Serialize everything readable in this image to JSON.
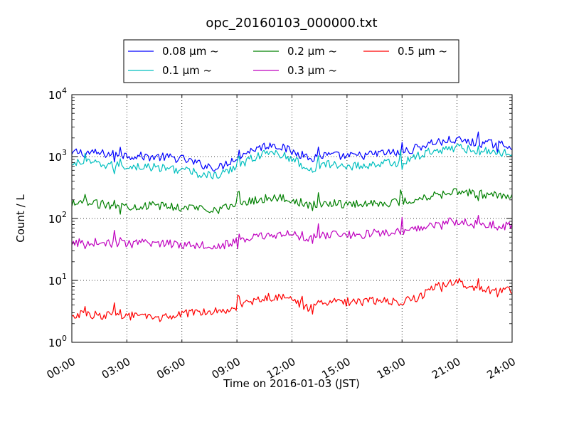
{
  "chart_data": {
    "type": "line",
    "title": "opc_20160103_000000.txt",
    "xlabel": "Time on 2016-01-03 (JST)",
    "ylabel": "Count / L",
    "y_scale": "log",
    "ylim": [
      1,
      10000
    ],
    "xlim": [
      "00:00",
      "24:00"
    ],
    "grid": true,
    "legend_position": "top-center",
    "x_ticks": [
      "00:00",
      "03:00",
      "06:00",
      "09:00",
      "12:00",
      "15:00",
      "18:00",
      "21:00",
      "24:00"
    ],
    "y_ticks": [
      {
        "value": 1,
        "base": "10",
        "exp": "0"
      },
      {
        "value": 10,
        "base": "10",
        "exp": "1"
      },
      {
        "value": 100,
        "base": "10",
        "exp": "2"
      },
      {
        "value": 1000,
        "base": "10",
        "exp": "3"
      },
      {
        "value": 10000,
        "base": "10",
        "exp": "4"
      }
    ],
    "x_hours": [
      0,
      1,
      2,
      3,
      4,
      5,
      6,
      7,
      8,
      9,
      10,
      11,
      12,
      13,
      14,
      15,
      16,
      17,
      18,
      19,
      20,
      21,
      22,
      23,
      24
    ],
    "series": [
      {
        "name": "0.08 μm ~",
        "color": "#0000ff",
        "values": [
          1200,
          1150,
          1100,
          1050,
          1000,
          980,
          920,
          750,
          650,
          1000,
          1350,
          1600,
          1200,
          950,
          1050,
          1000,
          1050,
          1150,
          1150,
          1450,
          1800,
          1850,
          1650,
          1600,
          1500
        ]
      },
      {
        "name": "0.1 μm ~",
        "color": "#00bfbf",
        "values": [
          800,
          780,
          720,
          700,
          680,
          650,
          620,
          520,
          480,
          700,
          1000,
          1200,
          900,
          650,
          750,
          700,
          720,
          780,
          800,
          1050,
          1350,
          1400,
          1250,
          1200,
          1150
        ]
      },
      {
        "name": "0.2 μm ~",
        "color": "#008000",
        "values": [
          170,
          175,
          165,
          160,
          160,
          160,
          150,
          150,
          140,
          170,
          200,
          220,
          200,
          160,
          180,
          170,
          175,
          180,
          180,
          210,
          260,
          280,
          250,
          240,
          240
        ]
      },
      {
        "name": "0.3 μm ~",
        "color": "#bf00bf",
        "values": [
          40,
          42,
          40,
          38,
          40,
          40,
          38,
          38,
          36,
          42,
          50,
          55,
          55,
          48,
          55,
          55,
          55,
          60,
          60,
          70,
          85,
          88,
          80,
          78,
          75
        ]
      },
      {
        "name": "0.5 μm ~",
        "color": "#ff0000",
        "values": [
          2.8,
          2.8,
          2.7,
          2.7,
          2.5,
          2.5,
          2.8,
          3.2,
          3.3,
          3.6,
          4.8,
          5.5,
          4.9,
          3.5,
          4.5,
          4.5,
          4.6,
          4.8,
          4.5,
          5.5,
          8.5,
          9.5,
          7.0,
          6.8,
          7.0
        ]
      }
    ]
  }
}
